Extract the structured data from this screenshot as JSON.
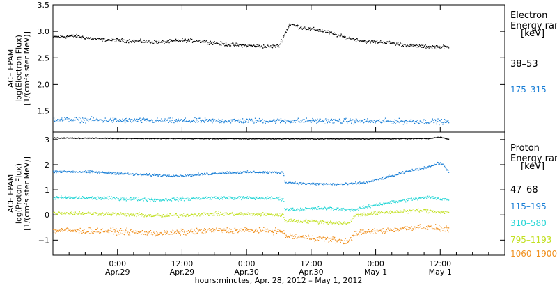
{
  "chart_data": {
    "type": "scatter",
    "xlabel": "hours:minutes, Apr. 28, 2012 – May  1, 2012",
    "x_ticks": [
      {
        "hour": 12,
        "time": "0:00",
        "date": "Apr.29"
      },
      {
        "hour": 24,
        "time": "12:00",
        "date": "Apr.29"
      },
      {
        "hour": 36,
        "time": "0:00",
        "date": "Apr.30"
      },
      {
        "hour": 48,
        "time": "12:00",
        "date": "Apr.30"
      },
      {
        "hour": 60,
        "time": "0:00",
        "date": "May 1"
      },
      {
        "hour": 72,
        "time": "12:00",
        "date": "May 1"
      }
    ],
    "xlim_hours": [
      0,
      84
    ],
    "data_end_hour": 73.5,
    "panels": [
      {
        "id": "electron",
        "ylabel_lines": [
          "ACE EPAM",
          "log(Electron Flux)",
          "[1/(cm²s ster MeV)]"
        ],
        "ylim": [
          1.1,
          3.5
        ],
        "yticks": [
          {
            "value": 1.5,
            "label": "1.5"
          },
          {
            "value": 2.0,
            "label": "2.0"
          },
          {
            "value": 2.5,
            "label": "2.5"
          },
          {
            "value": 3.0,
            "label": "3.0"
          },
          {
            "value": 3.5,
            "label": "3.5"
          }
        ],
        "legend_title_lines": [
          "Electron",
          "Energy ran",
          "[keV]"
        ],
        "series": [
          {
            "name": "38–53",
            "color": "#000000",
            "points": [
              [
                0,
                2.9
              ],
              [
                4,
                2.92
              ],
              [
                8,
                2.86
              ],
              [
                12,
                2.84
              ],
              [
                16,
                2.82
              ],
              [
                20,
                2.8
              ],
              [
                24,
                2.84
              ],
              [
                28,
                2.82
              ],
              [
                32,
                2.76
              ],
              [
                36,
                2.74
              ],
              [
                40,
                2.72
              ],
              [
                42,
                2.74
              ],
              [
                43,
                2.95
              ],
              [
                44,
                3.15
              ],
              [
                46,
                3.08
              ],
              [
                50,
                3.02
              ],
              [
                54,
                2.9
              ],
              [
                58,
                2.82
              ],
              [
                62,
                2.8
              ],
              [
                66,
                2.74
              ],
              [
                70,
                2.72
              ],
              [
                73.5,
                2.71
              ]
            ],
            "scatter": 0.05
          },
          {
            "name": "175–315",
            "color": "#1a7fd6",
            "points": [
              [
                0,
                1.35
              ],
              [
                10,
                1.33
              ],
              [
                20,
                1.32
              ],
              [
                30,
                1.32
              ],
              [
                40,
                1.32
              ],
              [
                50,
                1.32
              ],
              [
                60,
                1.31
              ],
              [
                70,
                1.31
              ],
              [
                73.5,
                1.3
              ]
            ],
            "scatter": 0.07
          }
        ]
      },
      {
        "id": "proton",
        "ylabel_lines": [
          "ACE EPAM",
          "log(Proton Flux)",
          "[1/(cm²s ster MeV)]"
        ],
        "ylim": [
          -1.6,
          3.3
        ],
        "yticks": [
          {
            "value": -1,
            "label": "−1"
          },
          {
            "value": 0,
            "label": "0"
          },
          {
            "value": 1,
            "label": "1"
          },
          {
            "value": 2,
            "label": "2"
          },
          {
            "value": 3,
            "label": "3"
          }
        ],
        "legend_title_lines": [
          "Proton",
          "Energy ran",
          "[keV]"
        ],
        "series": [
          {
            "name": "47–68",
            "color": "#000000",
            "points": [
              [
                0,
                3.08
              ],
              [
                20,
                3.06
              ],
              [
                40,
                3.05
              ],
              [
                60,
                3.05
              ],
              [
                70,
                3.06
              ],
              [
                72,
                3.12
              ],
              [
                73.5,
                3.02
              ]
            ],
            "scatter": 0.025
          },
          {
            "name": "115–195",
            "color": "#1a7fd6",
            "points": [
              [
                0,
                1.75
              ],
              [
                8,
                1.72
              ],
              [
                16,
                1.62
              ],
              [
                24,
                1.58
              ],
              [
                32,
                1.7
              ],
              [
                38,
                1.72
              ],
              [
                42.8,
                1.7
              ],
              [
                43,
                1.32
              ],
              [
                48,
                1.25
              ],
              [
                54,
                1.24
              ],
              [
                58,
                1.3
              ],
              [
                62,
                1.52
              ],
              [
                66,
                1.75
              ],
              [
                70,
                1.95
              ],
              [
                72,
                2.1
              ],
              [
                73.5,
                1.75
              ]
            ],
            "scatter": 0.07
          },
          {
            "name": "310–580",
            "color": "#22d5d5",
            "points": [
              [
                0,
                0.7
              ],
              [
                10,
                0.68
              ],
              [
                20,
                0.62
              ],
              [
                30,
                0.7
              ],
              [
                40,
                0.68
              ],
              [
                42.8,
                0.66
              ],
              [
                43,
                0.22
              ],
              [
                50,
                0.28
              ],
              [
                56,
                0.22
              ],
              [
                60,
                0.42
              ],
              [
                66,
                0.62
              ],
              [
                70,
                0.72
              ],
              [
                73.5,
                0.62
              ]
            ],
            "scatter": 0.1
          },
          {
            "name": "795–1193",
            "color": "#c2e022",
            "points": [
              [
                0,
                0.1
              ],
              [
                10,
                0.06
              ],
              [
                20,
                -0.02
              ],
              [
                30,
                0.06
              ],
              [
                40,
                0.04
              ],
              [
                42.8,
                0.0
              ],
              [
                43,
                -0.2
              ],
              [
                50,
                -0.26
              ],
              [
                55,
                -0.32
              ],
              [
                56,
                0.0
              ],
              [
                62,
                0.12
              ],
              [
                68,
                0.2
              ],
              [
                73.5,
                0.12
              ]
            ],
            "scatter": 0.11
          },
          {
            "name": "1060–1900",
            "color": "#f0901e",
            "points": [
              [
                0,
                -0.6
              ],
              [
                10,
                -0.62
              ],
              [
                20,
                -0.72
              ],
              [
                30,
                -0.6
              ],
              [
                40,
                -0.6
              ],
              [
                42.8,
                -0.65
              ],
              [
                43,
                -0.82
              ],
              [
                50,
                -0.92
              ],
              [
                55,
                -1.05
              ],
              [
                56,
                -0.72
              ],
              [
                62,
                -0.6
              ],
              [
                68,
                -0.45
              ],
              [
                73.5,
                -0.55
              ]
            ],
            "scatter": 0.17
          }
        ]
      }
    ]
  }
}
